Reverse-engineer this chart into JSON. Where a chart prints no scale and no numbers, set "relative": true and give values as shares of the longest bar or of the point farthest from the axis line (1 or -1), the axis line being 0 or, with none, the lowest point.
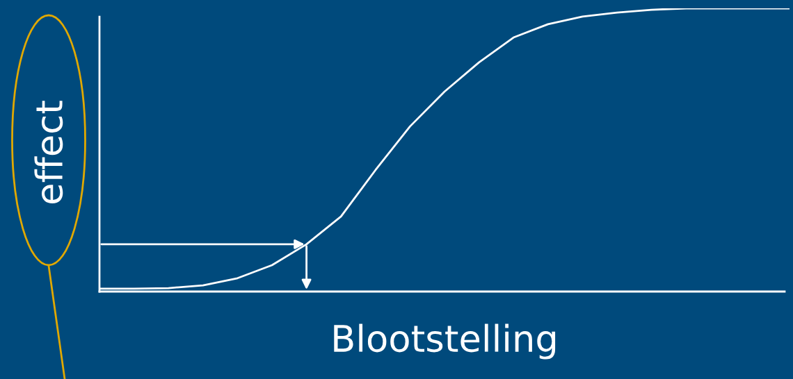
{
  "chart_data": {
    "type": "line",
    "relative": true,
    "xlabel": "Blootstelling",
    "ylabel": "effect",
    "categories": [
      null,
      null,
      null,
      null,
      null,
      null,
      null,
      null,
      null,
      null,
      null,
      null,
      null,
      null,
      null,
      null,
      null,
      null,
      null,
      null,
      null
    ],
    "series": [
      {
        "color": "#ffffff",
        "values": [
          0.01,
          0.01,
          0.012,
          0.022,
          0.047,
          0.093,
          0.167,
          0.265,
          0.429,
          0.583,
          0.706,
          0.809,
          0.897,
          0.944,
          0.971,
          0.985,
          0.995,
          1.0,
          1.0,
          1.0,
          1.0
        ]
      }
    ],
    "marker": "none",
    "line_style": "solid",
    "grid": false,
    "legend": false
  }
}
